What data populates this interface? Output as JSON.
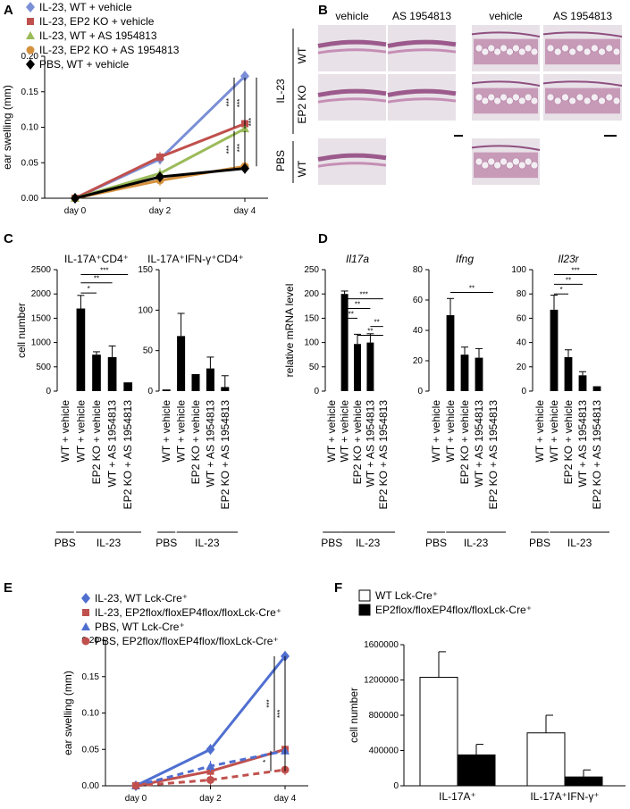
{
  "figure_panels": [
    "A",
    "B",
    "C",
    "D",
    "E",
    "F"
  ],
  "chart_data": [
    {
      "id": "A",
      "type": "line",
      "ylabel": "ear swelling (mm)",
      "xlabel": "",
      "categories": [
        "day 0",
        "day 2",
        "day 4"
      ],
      "ylim": [
        0,
        0.2
      ],
      "yticks": [
        "0.00",
        "0.05",
        "0.10",
        "0.15",
        "0.20"
      ],
      "series": [
        {
          "name": "IL-23, WT + vehicle",
          "color": "#7b8fd6",
          "marker": "diamond",
          "values": [
            0,
            0.055,
            0.172
          ]
        },
        {
          "name": "IL-23, EP2 KO + vehicle",
          "color": "#c0504d",
          "marker": "square",
          "values": [
            0,
            0.058,
            0.105
          ]
        },
        {
          "name": "IL-23, WT + AS 1954813",
          "color": "#9bbb59",
          "marker": "triangle",
          "values": [
            0,
            0.035,
            0.098
          ]
        },
        {
          "name": "IL-23, EP2 KO + AS 1954813",
          "color": "#d4913d",
          "marker": "circle",
          "values": [
            0,
            0.025,
            0.045
          ]
        },
        {
          "name": "PBS, WT + vehicle",
          "color": "#000000",
          "marker": "diamond",
          "values": [
            0,
            0.03,
            0.042
          ]
        }
      ],
      "significance": [
        "***",
        "***",
        "***",
        "***",
        "***"
      ]
    },
    {
      "id": "C1",
      "type": "bar",
      "title": "IL-17A⁺CD4⁺",
      "ylabel": "cell number",
      "ylim": [
        0,
        2500
      ],
      "yticks": [
        "0",
        "500",
        "1000",
        "1500",
        "2000",
        "2500"
      ],
      "categories": [
        "WT + vehicle",
        "WT + vehicle",
        "EP2 KO + vehicle",
        "WT + AS 1954813",
        "EP2 KO + AS 1954813"
      ],
      "values": [
        0,
        1700,
        750,
        700,
        180
      ],
      "errors": [
        0,
        270,
        60,
        230,
        0
      ],
      "significance": [
        "*",
        "**",
        "***"
      ]
    },
    {
      "id": "C2",
      "type": "bar",
      "title": "IL-17A⁺IFN-γ⁺CD4⁺",
      "ylim": [
        0,
        150
      ],
      "yticks": [
        "0",
        "50",
        "100",
        "150"
      ],
      "categories": [
        "WT + vehicle",
        "WT + vehicle",
        "EP2 KO + vehicle",
        "WT + AS 1954813",
        "EP2 KO + AS 1954813"
      ],
      "values": [
        2,
        68,
        21,
        28,
        5
      ],
      "errors": [
        0,
        28,
        0,
        14,
        14
      ]
    },
    {
      "id": "D1",
      "type": "bar",
      "title": "Il17a",
      "ylabel": "relative mRNA level",
      "ylim": [
        0,
        250
      ],
      "yticks": [
        "0",
        "50",
        "100",
        "150",
        "200",
        "250"
      ],
      "categories": [
        "WT + vehicle",
        "WT + vehicle",
        "EP2 KO + vehicle",
        "WT + AS 1954813",
        "EP2 KO + AS 1954813"
      ],
      "values": [
        0,
        200,
        97,
        100,
        0
      ],
      "errors": [
        0,
        6,
        20,
        18,
        0
      ],
      "significance": [
        "**",
        "**",
        "***",
        "**",
        "**"
      ]
    },
    {
      "id": "D2",
      "type": "bar",
      "title": "Ifng",
      "ylim": [
        0,
        80
      ],
      "yticks": [
        "0",
        "20",
        "40",
        "60",
        "80"
      ],
      "categories": [
        "WT + vehicle",
        "WT + vehicle",
        "EP2 KO + vehicle",
        "WT + AS 1954813",
        "EP2 KO + AS 1954813"
      ],
      "values": [
        0,
        50,
        24,
        22,
        0
      ],
      "errors": [
        0,
        11,
        5,
        6,
        0
      ],
      "significance": [
        "**"
      ]
    },
    {
      "id": "D3",
      "type": "bar",
      "title": "Il23r",
      "ylim": [
        0,
        100
      ],
      "yticks": [
        "0",
        "20",
        "40",
        "60",
        "80",
        "100"
      ],
      "categories": [
        "WT + vehicle",
        "WT + vehicle",
        "EP2 KO + vehicle",
        "WT + AS 1954813",
        "EP2 KO + AS 1954813"
      ],
      "values": [
        0,
        67,
        28,
        13,
        4
      ],
      "errors": [
        0,
        12,
        6,
        3,
        0
      ],
      "significance": [
        "*",
        "**",
        "***"
      ]
    },
    {
      "id": "E",
      "type": "line",
      "ylabel": "ear swelling (mm)",
      "categories": [
        "day 0",
        "day 2",
        "day 4"
      ],
      "ylim": [
        0,
        0.2
      ],
      "yticks": [
        "0.00",
        "0.05",
        "0.10",
        "0.15",
        "0.20"
      ],
      "series": [
        {
          "name": "IL-23, WT Lck-Cre⁺",
          "color": "#4f6fd0",
          "marker": "diamond",
          "dashed": false,
          "values": [
            0,
            0.05,
            0.178
          ]
        },
        {
          "name": "IL-23, EP2flox/floxEP4flox/floxLck-Cre⁺",
          "color": "#c0504d",
          "marker": "square",
          "dashed": false,
          "values": [
            0,
            0.02,
            0.05
          ]
        },
        {
          "name": "PBS, WT Lck-Cre⁺",
          "color": "#4f6fd0",
          "marker": "triangle",
          "dashed": true,
          "values": [
            0,
            0.027,
            0.048
          ]
        },
        {
          "name": "PBS, EP2flox/floxEP4flox/floxLck-Cre⁺",
          "color": "#c0504d",
          "marker": "circle",
          "dashed": true,
          "values": [
            0,
            0.008,
            0.022
          ]
        }
      ],
      "significance": [
        "***",
        "***",
        "*"
      ]
    },
    {
      "id": "F",
      "type": "bar",
      "ylabel": "cell number",
      "ylim": [
        0,
        1600000
      ],
      "yticks": [
        "0",
        "400000",
        "800000",
        "1200000",
        "1600000"
      ],
      "categories": [
        "IL-17A⁺",
        "IL-17A⁺IFN-γ⁺"
      ],
      "series": [
        {
          "name": "WT Lck-Cre⁺",
          "fill": "#ffffff",
          "values": [
            1230000,
            600000
          ],
          "errors": [
            290000,
            200000
          ]
        },
        {
          "name": "EP2flox/floxEP4flox/floxLck-Cre⁺",
          "fill": "#000000",
          "values": [
            350000,
            100000
          ],
          "errors": [
            120000,
            80000
          ]
        }
      ]
    }
  ],
  "group_labels": {
    "pbs": "PBS",
    "il23": "IL-23"
  },
  "histology": {
    "col_headers": [
      "vehicle",
      "AS 1954813",
      "vehicle",
      "AS 1954813"
    ],
    "outer_row_label": "IL-23",
    "row_labels": [
      "WT",
      "EP2 KO",
      "WT"
    ],
    "pbs_label": "PBS"
  }
}
